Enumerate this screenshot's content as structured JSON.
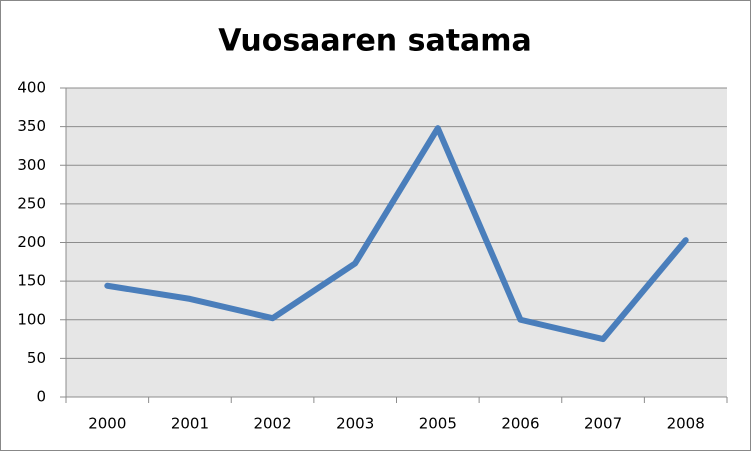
{
  "chart_data": {
    "type": "line",
    "title": "Vuosaaren satama",
    "categories": [
      "2000",
      "2001",
      "2002",
      "2003",
      "2005",
      "2006",
      "2007",
      "2008"
    ],
    "series": [
      {
        "name": "Vuosaaren satama",
        "color": "#4a7ebb",
        "values": [
          144,
          127,
          102,
          173,
          348,
          100,
          75,
          203
        ]
      }
    ],
    "ylim": [
      0,
      400
    ],
    "yticks": [
      0,
      50,
      100,
      150,
      200,
      250,
      300,
      350,
      400
    ],
    "grid": true
  }
}
